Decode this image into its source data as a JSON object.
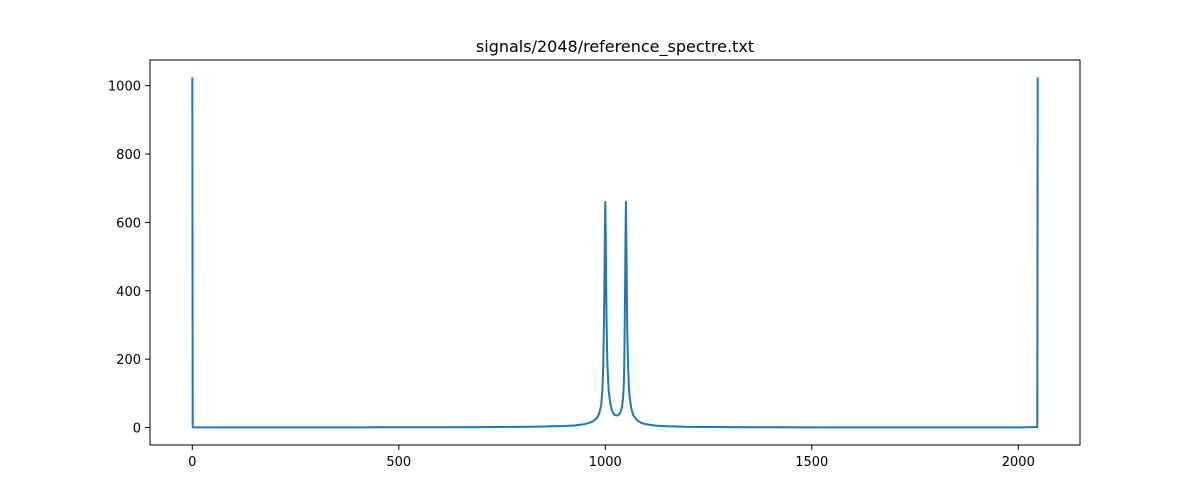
{
  "chart_data": {
    "type": "line",
    "title": "signals/2048/reference_spectre.txt",
    "xlabel": "",
    "ylabel": "",
    "xlim": [
      -102.4,
      2149.4
    ],
    "ylim": [
      -51.2,
      1075.2
    ],
    "xticks": [
      0,
      500,
      1000,
      1500,
      2000
    ],
    "xtick_labels": [
      "0",
      "500",
      "1000",
      "1500",
      "2000"
    ],
    "yticks": [
      0,
      200,
      400,
      600,
      800,
      1000
    ],
    "ytick_labels": [
      "0",
      "200",
      "400",
      "600",
      "800",
      "1000"
    ],
    "grid": false,
    "legend": "none",
    "series": [
      {
        "color": "#1f77b4",
        "x": [
          0,
          1,
          2,
          100,
          200,
          300,
          400,
          500,
          600,
          700,
          800,
          850,
          900,
          925,
          950,
          960,
          970,
          980,
          985,
          990,
          993,
          995,
          997,
          998,
          999,
          1000,
          1001,
          1002,
          1003,
          1005,
          1008,
          1012,
          1016,
          1020,
          1024,
          1028,
          1032,
          1036,
          1040,
          1043,
          1045,
          1046,
          1047,
          1048,
          1049,
          1050,
          1051,
          1053,
          1055,
          1058,
          1063,
          1068,
          1078,
          1088,
          1100,
          1125,
          1150,
          1200,
          1250,
          1300,
          1400,
          1500,
          1600,
          1700,
          1800,
          1900,
          2000,
          2045,
          2046,
          2047
        ],
        "y": [
          1024,
          1.5,
          0.5,
          0.4,
          0.4,
          0.5,
          0.5,
          0.6,
          0.8,
          1.2,
          2,
          3,
          4.5,
          6,
          10,
          13,
          18,
          28,
          40,
          65,
          110,
          180,
          320,
          430,
          560,
          660,
          560,
          430,
          320,
          190,
          110,
          70,
          50,
          40,
          36,
          35,
          37,
          42,
          58,
          85,
          130,
          190,
          300,
          420,
          560,
          660,
          540,
          300,
          180,
          100,
          55,
          35,
          20,
          13,
          9,
          5,
          3.5,
          2,
          1.4,
          1,
          0.7,
          0.5,
          0.4,
          0.4,
          0.4,
          0.4,
          0.5,
          1.5,
          1.5,
          1024
        ]
      }
    ]
  }
}
